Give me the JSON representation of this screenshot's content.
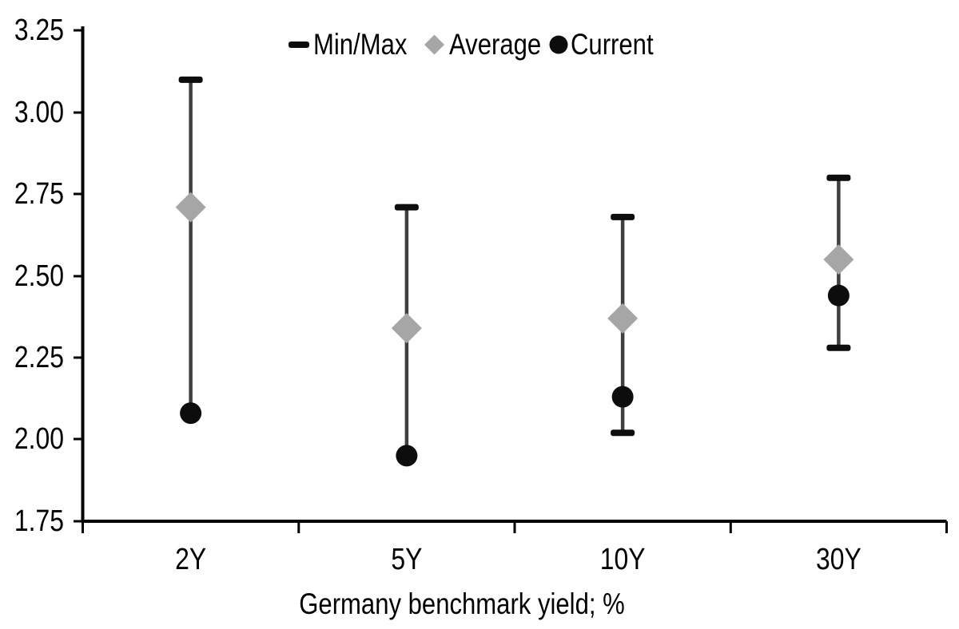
{
  "figure": {
    "background": "#ffffff"
  },
  "chart_data": {
    "type": "scatter",
    "subtype": "min-max-range-errorbar",
    "title": "",
    "xlabel": "Germany benchmark yield; %",
    "ylabel": "",
    "categories": [
      "2Y",
      "5Y",
      "10Y",
      "30Y"
    ],
    "ylim": [
      1.75,
      3.25
    ],
    "ytick_step": 0.25,
    "ytick_labels": [
      "3.25",
      "3.00",
      "2.75",
      "2.50",
      "2.25",
      "2.00",
      "1.75"
    ],
    "grid": false,
    "axis_color": "#000000",
    "legend": {
      "position": "top-center",
      "items": [
        {
          "label": "Min/Max",
          "marker": "dash",
          "color": "#0d0d0d"
        },
        {
          "label": "Average",
          "marker": "diamond",
          "color": "#a6a6a6"
        },
        {
          "label": "Current",
          "marker": "circle",
          "color": "#0d0d0d"
        }
      ]
    },
    "series": [
      {
        "name": "Min/Max",
        "kind": "range",
        "min": [
          2.08,
          1.95,
          2.02,
          2.28
        ],
        "max": [
          3.1,
          2.71,
          2.68,
          2.8
        ],
        "min_cap_visible": [
          false,
          false,
          true,
          true
        ],
        "line_color": "#3f3f3f",
        "cap_color": "#0d0d0d"
      },
      {
        "name": "Average",
        "kind": "point",
        "marker": "diamond",
        "color": "#a6a6a6",
        "values": [
          2.71,
          2.34,
          2.37,
          2.55
        ]
      },
      {
        "name": "Current",
        "kind": "point",
        "marker": "circle",
        "color": "#0d0d0d",
        "values": [
          2.08,
          1.95,
          2.13,
          2.44
        ]
      }
    ]
  }
}
